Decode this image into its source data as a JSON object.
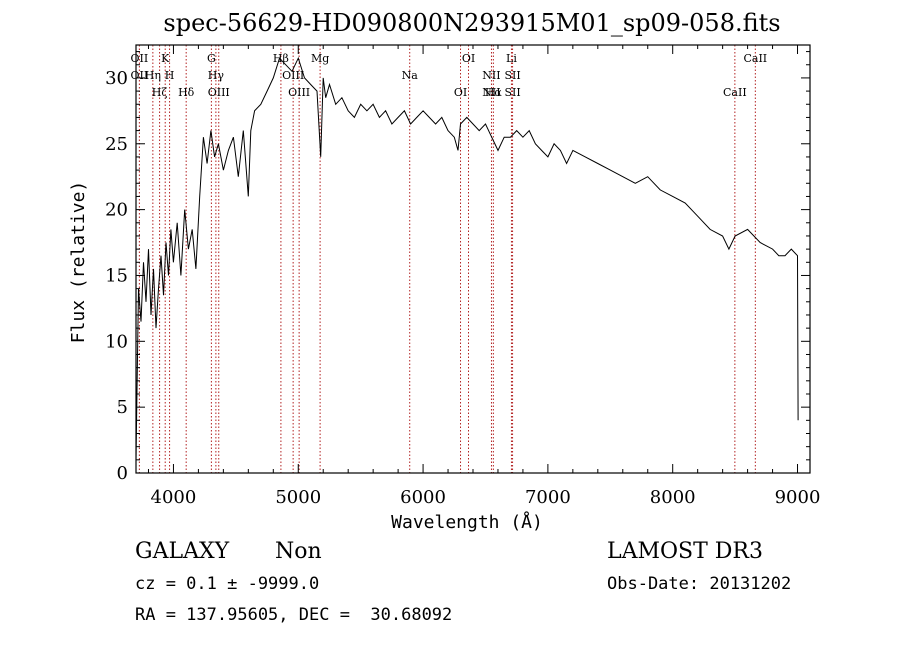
{
  "chart_data": {
    "type": "line",
    "title": "spec-56629-HD090800N293915M01_sp09-058.fits",
    "xlabel": "Wavelength (Å)",
    "ylabel": "Flux (relative)",
    "xlim": [
      3700,
      9100
    ],
    "ylim": [
      0,
      32.5
    ],
    "xticks": [
      {
        "value": 4000,
        "label": "4000"
      },
      {
        "value": 5000,
        "label": "5000"
      },
      {
        "value": 6000,
        "label": "6000"
      },
      {
        "value": 7000,
        "label": "7000"
      },
      {
        "value": 8000,
        "label": "8000"
      },
      {
        "value": 9000,
        "label": "9000"
      }
    ],
    "yticks": [
      {
        "value": 0,
        "label": "0"
      },
      {
        "value": 5,
        "label": "5"
      },
      {
        "value": 10,
        "label": "10"
      },
      {
        "value": 15,
        "label": "15"
      },
      {
        "value": 20,
        "label": "20"
      },
      {
        "value": 25,
        "label": "25"
      },
      {
        "value": 30,
        "label": "30"
      }
    ],
    "series": [
      {
        "name": "spectrum",
        "color": "#000000",
        "x": [
          3700,
          3720,
          3740,
          3760,
          3780,
          3800,
          3820,
          3840,
          3860,
          3880,
          3900,
          3920,
          3940,
          3960,
          3980,
          4000,
          4030,
          4060,
          4090,
          4120,
          4150,
          4180,
          4210,
          4240,
          4270,
          4300,
          4330,
          4360,
          4400,
          4440,
          4480,
          4520,
          4560,
          4600,
          4620,
          4650,
          4700,
          4750,
          4800,
          4850,
          4900,
          4950,
          5000,
          5050,
          5100,
          5150,
          5180,
          5200,
          5220,
          5250,
          5300,
          5350,
          5400,
          5450,
          5500,
          5550,
          5600,
          5650,
          5700,
          5750,
          5800,
          5850,
          5900,
          5950,
          6000,
          6050,
          6100,
          6150,
          6200,
          6250,
          6280,
          6300,
          6350,
          6400,
          6450,
          6500,
          6550,
          6600,
          6650,
          6700,
          6750,
          6800,
          6850,
          6900,
          6950,
          7000,
          7050,
          7100,
          7150,
          7200,
          7300,
          7400,
          7500,
          7600,
          7700,
          7800,
          7900,
          8000,
          8100,
          8200,
          8300,
          8400,
          8450,
          8500,
          8600,
          8700,
          8800,
          8850,
          8900,
          8950,
          9000,
          9005
        ],
        "y": [
          1.0,
          14.0,
          11.5,
          16.0,
          13.0,
          17.0,
          12.0,
          15.5,
          11.0,
          14.0,
          16.5,
          13.5,
          17.5,
          15.0,
          18.5,
          16.0,
          19.0,
          15.0,
          20.0,
          17.0,
          18.5,
          15.5,
          21.0,
          25.5,
          23.5,
          26.0,
          24.0,
          25.0,
          23.0,
          24.5,
          25.5,
          22.5,
          26.0,
          21.0,
          26.0,
          27.5,
          28.0,
          29.0,
          30.0,
          31.5,
          31.0,
          30.5,
          31.5,
          30.0,
          29.5,
          29.0,
          24.0,
          30.0,
          28.5,
          29.5,
          28.0,
          28.5,
          27.5,
          27.0,
          28.0,
          27.5,
          28.0,
          27.0,
          27.5,
          26.5,
          27.0,
          27.5,
          26.5,
          27.0,
          27.5,
          27.0,
          26.5,
          27.0,
          26.0,
          25.5,
          24.5,
          26.5,
          27.0,
          26.5,
          26.0,
          26.5,
          25.5,
          24.5,
          25.5,
          25.5,
          26.0,
          25.5,
          26.0,
          25.0,
          24.5,
          24.0,
          25.0,
          24.5,
          23.5,
          24.5,
          24.0,
          23.5,
          23.0,
          22.5,
          22.0,
          22.5,
          21.5,
          21.0,
          20.5,
          19.5,
          18.5,
          18.0,
          17.0,
          18.0,
          18.5,
          17.5,
          17.0,
          16.5,
          16.5,
          17.0,
          16.5,
          4.0
        ]
      }
    ],
    "lines": [
      {
        "wavelength": 3727,
        "labels": [
          "OII",
          "OII"
        ]
      },
      {
        "wavelength": 3835,
        "labels": [
          "Hη"
        ]
      },
      {
        "wavelength": 3889,
        "labels": [
          "Hζ"
        ]
      },
      {
        "wavelength": 3934,
        "labels": [
          "K"
        ]
      },
      {
        "wavelength": 3969,
        "labels": [
          "H"
        ]
      },
      {
        "wavelength": 4102,
        "labels": [
          "Hδ"
        ]
      },
      {
        "wavelength": 4304,
        "labels": [
          "G"
        ]
      },
      {
        "wavelength": 4340,
        "labels": [
          "Hγ"
        ]
      },
      {
        "wavelength": 4363,
        "labels": [
          "OIII"
        ]
      },
      {
        "wavelength": 4861,
        "labels": [
          "Hβ"
        ]
      },
      {
        "wavelength": 4959,
        "labels": [
          "OIII"
        ]
      },
      {
        "wavelength": 5007,
        "labels": [
          "OIII"
        ]
      },
      {
        "wavelength": 5175,
        "labels": [
          "Mg"
        ]
      },
      {
        "wavelength": 5893,
        "labels": [
          "Na"
        ]
      },
      {
        "wavelength": 6300,
        "labels": [
          "OI"
        ]
      },
      {
        "wavelength": 6364,
        "labels": [
          "OI"
        ]
      },
      {
        "wavelength": 6548,
        "labels": [
          "NII",
          "NII"
        ]
      },
      {
        "wavelength": 6563,
        "labels": [
          "Hα"
        ]
      },
      {
        "wavelength": 6708,
        "labels": [
          "Li"
        ]
      },
      {
        "wavelength": 6717,
        "labels": [
          "SII",
          "SII"
        ]
      },
      {
        "wavelength": 8498,
        "labels": [
          "CaII"
        ]
      },
      {
        "wavelength": 8662,
        "labels": [
          "CaII"
        ]
      }
    ],
    "line_color": "#b22222"
  },
  "info": {
    "type_label": "GALAXY",
    "subclass": "Non",
    "survey": "LAMOST DR3",
    "cz": "cz = 0.1 ± -9999.0",
    "obs_date": "Obs-Date: 20131202",
    "coords": "RA = 137.95605, DEC =  30.68092"
  }
}
